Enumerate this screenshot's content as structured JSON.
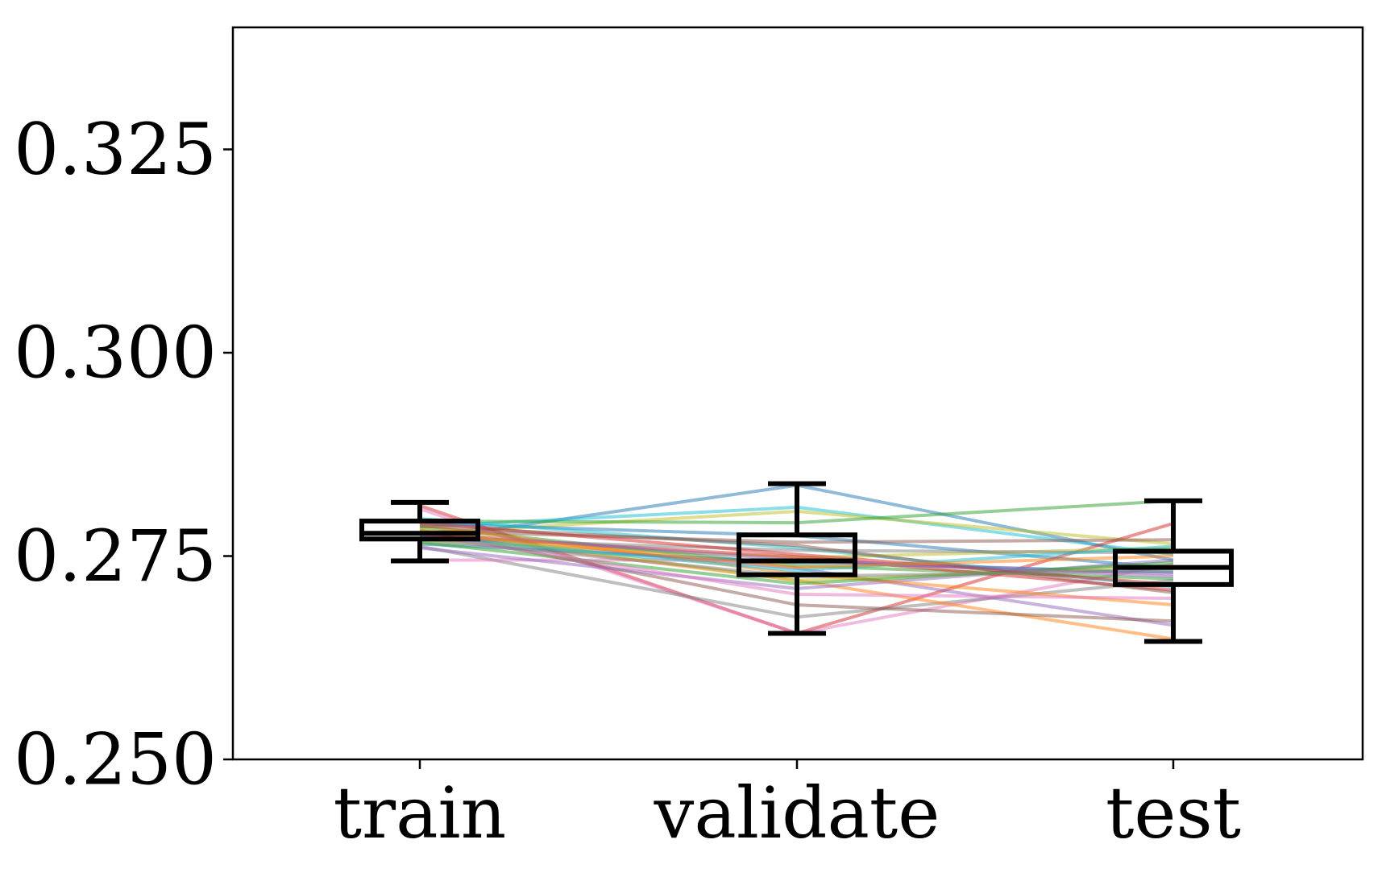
{
  "chart_data": {
    "type": "box",
    "title": "",
    "xlabel": "",
    "ylabel": "",
    "ylim": [
      0.25,
      0.34
    ],
    "y_ticks": [
      0.25,
      0.275,
      0.3,
      0.325
    ],
    "y_tick_labels": [
      "0.250",
      "0.275",
      "0.300",
      "0.325"
    ],
    "categories": [
      "train",
      "validate",
      "test"
    ],
    "boxes": [
      {
        "name": "train",
        "whisker_low": 0.2744,
        "q1": 0.2771,
        "median": 0.2778,
        "q3": 0.2793,
        "whisker_high": 0.2816
      },
      {
        "name": "validate",
        "whisker_low": 0.2655,
        "q1": 0.2727,
        "median": 0.2744,
        "q3": 0.2776,
        "whisker_high": 0.2839
      },
      {
        "name": "test",
        "whisker_low": 0.2645,
        "q1": 0.2715,
        "median": 0.2736,
        "q3": 0.2756,
        "whisker_high": 0.2818
      }
    ],
    "series": [
      {
        "values": [
          0.277,
          0.2837,
          0.2745
        ],
        "color": "#1f77b4"
      },
      {
        "values": [
          0.2786,
          0.281,
          0.2752
        ],
        "color": "#17becf"
      },
      {
        "values": [
          0.2778,
          0.2805,
          0.2765
        ],
        "color": "#bcbd22"
      },
      {
        "values": [
          0.2793,
          0.2791,
          0.2818
        ],
        "color": "#2ca02c"
      },
      {
        "values": [
          0.2812,
          0.2655,
          0.279
        ],
        "color": "#d62728"
      },
      {
        "values": [
          0.2808,
          0.2655,
          0.274
        ],
        "color": "#e377c2"
      },
      {
        "values": [
          0.2762,
          0.2675,
          0.272
        ],
        "color": "#7f7f7f"
      },
      {
        "values": [
          0.2745,
          0.2745,
          0.2728
        ],
        "color": "#e377c2"
      },
      {
        "values": [
          0.2778,
          0.272,
          0.2648
        ],
        "color": "#ff7f0e"
      },
      {
        "values": [
          0.2775,
          0.2735,
          0.2665
        ],
        "color": "#9467bd"
      },
      {
        "values": [
          0.2782,
          0.269,
          0.267
        ],
        "color": "#8c564b"
      },
      {
        "values": [
          0.279,
          0.2775,
          0.2735
        ],
        "color": "#1f77b4"
      },
      {
        "values": [
          0.2796,
          0.276,
          0.2712
        ],
        "color": "#17becf"
      },
      {
        "values": [
          0.2769,
          0.2748,
          0.276
        ],
        "color": "#bcbd22"
      },
      {
        "values": [
          0.2786,
          0.2738,
          0.2722
        ],
        "color": "#2ca02c"
      },
      {
        "values": [
          0.2776,
          0.2749,
          0.2708
        ],
        "color": "#d62728"
      },
      {
        "values": [
          0.276,
          0.271,
          0.2745
        ],
        "color": "#9467bd"
      },
      {
        "values": [
          0.2781,
          0.2767,
          0.277
        ],
        "color": "#8c564b"
      },
      {
        "values": [
          0.2772,
          0.2757,
          0.2754
        ],
        "color": "#7f7f7f"
      },
      {
        "values": [
          0.2788,
          0.2728,
          0.269
        ],
        "color": "#ff7f0e"
      },
      {
        "values": [
          0.2765,
          0.2742,
          0.273
        ],
        "color": "#1f77b4"
      },
      {
        "values": [
          0.2783,
          0.272,
          0.2738
        ],
        "color": "#bcbd22"
      },
      {
        "values": [
          0.2774,
          0.2732,
          0.2762
        ],
        "color": "#17becf"
      },
      {
        "values": [
          0.2767,
          0.2716,
          0.2742
        ],
        "color": "#2ca02c"
      },
      {
        "values": [
          0.2791,
          0.2752,
          0.2715
        ],
        "color": "#d62728"
      },
      {
        "values": [
          0.2777,
          0.2703,
          0.2698
        ],
        "color": "#e377c2"
      },
      {
        "values": [
          0.2779,
          0.2745,
          0.2725
        ],
        "color": "#9467bd"
      },
      {
        "values": [
          0.2787,
          0.2763,
          0.2705
        ],
        "color": "#8c564b"
      },
      {
        "values": [
          0.278,
          0.2736,
          0.275
        ],
        "color": "#ff7f0e"
      },
      {
        "values": [
          0.2771,
          0.2725,
          0.2732
        ],
        "color": "#7f7f7f"
      }
    ]
  }
}
